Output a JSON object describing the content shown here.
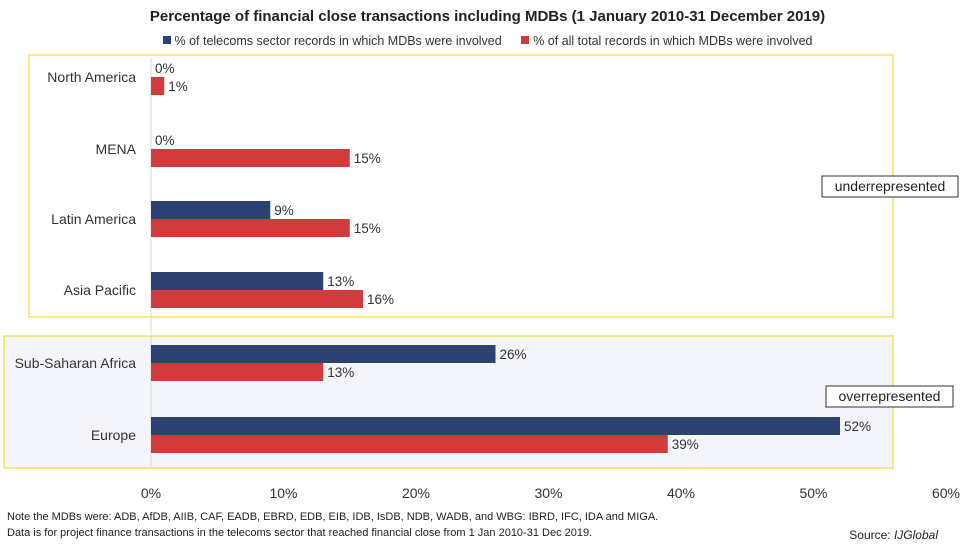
{
  "chart_data": {
    "type": "bar",
    "orientation": "horizontal",
    "title": "Percentage of financial close transactions including MDBs (1 January 2010-31 December 2019)",
    "categories": [
      "North America",
      "MENA",
      "Latin America",
      "Asia Pacific",
      "Sub-Saharan Africa",
      "Europe"
    ],
    "series": [
      {
        "name": "% of telecoms sector records in which MDBs were involved",
        "color": "#2e4173",
        "values": [
          0,
          0,
          9,
          13,
          26,
          52
        ],
        "labels": [
          "0%",
          "0%",
          "9%",
          "13%",
          "26%",
          "52%"
        ]
      },
      {
        "name": "% of all total records in which MDBs were involved",
        "color": "#d13b3b",
        "values": [
          1,
          15,
          15,
          16,
          13,
          39
        ],
        "labels": [
          "1%",
          "15%",
          "15%",
          "16%",
          "13%",
          "39%"
        ]
      }
    ],
    "xlim": [
      0,
      60
    ],
    "xticks": [
      0,
      10,
      20,
      30,
      40,
      50,
      60
    ],
    "xtick_labels": [
      "0%",
      "10%",
      "20%",
      "30%",
      "40%",
      "50%",
      "60%"
    ],
    "grid": false,
    "legend_position": "top",
    "groups": [
      {
        "label": "underrepresented",
        "categories": [
          "North America",
          "MENA",
          "Latin America",
          "Asia Pacific"
        ],
        "border_color": "#f2e35c",
        "fill": "#ffffff"
      },
      {
        "label": "overrepresented",
        "categories": [
          "Sub-Saharan Africa",
          "Europe"
        ],
        "border_color": "#f2e35c",
        "fill": "#f4f5fa"
      }
    ]
  },
  "notes": [
    "Note the MDBs were: ADB, AfDB, AIIB, CAF, EADB, EBRD, EDB, EIB, IDB, IsDB, NDB, WADB, and WBG: IBRD, IFC, IDA and MIGA.",
    "Data is for project finance transactions in the telecoms sector that reached financial close from 1 Jan 2010-31 Dec 2019."
  ],
  "source": {
    "prefix": "Source: ",
    "name": "IJGlobal"
  }
}
